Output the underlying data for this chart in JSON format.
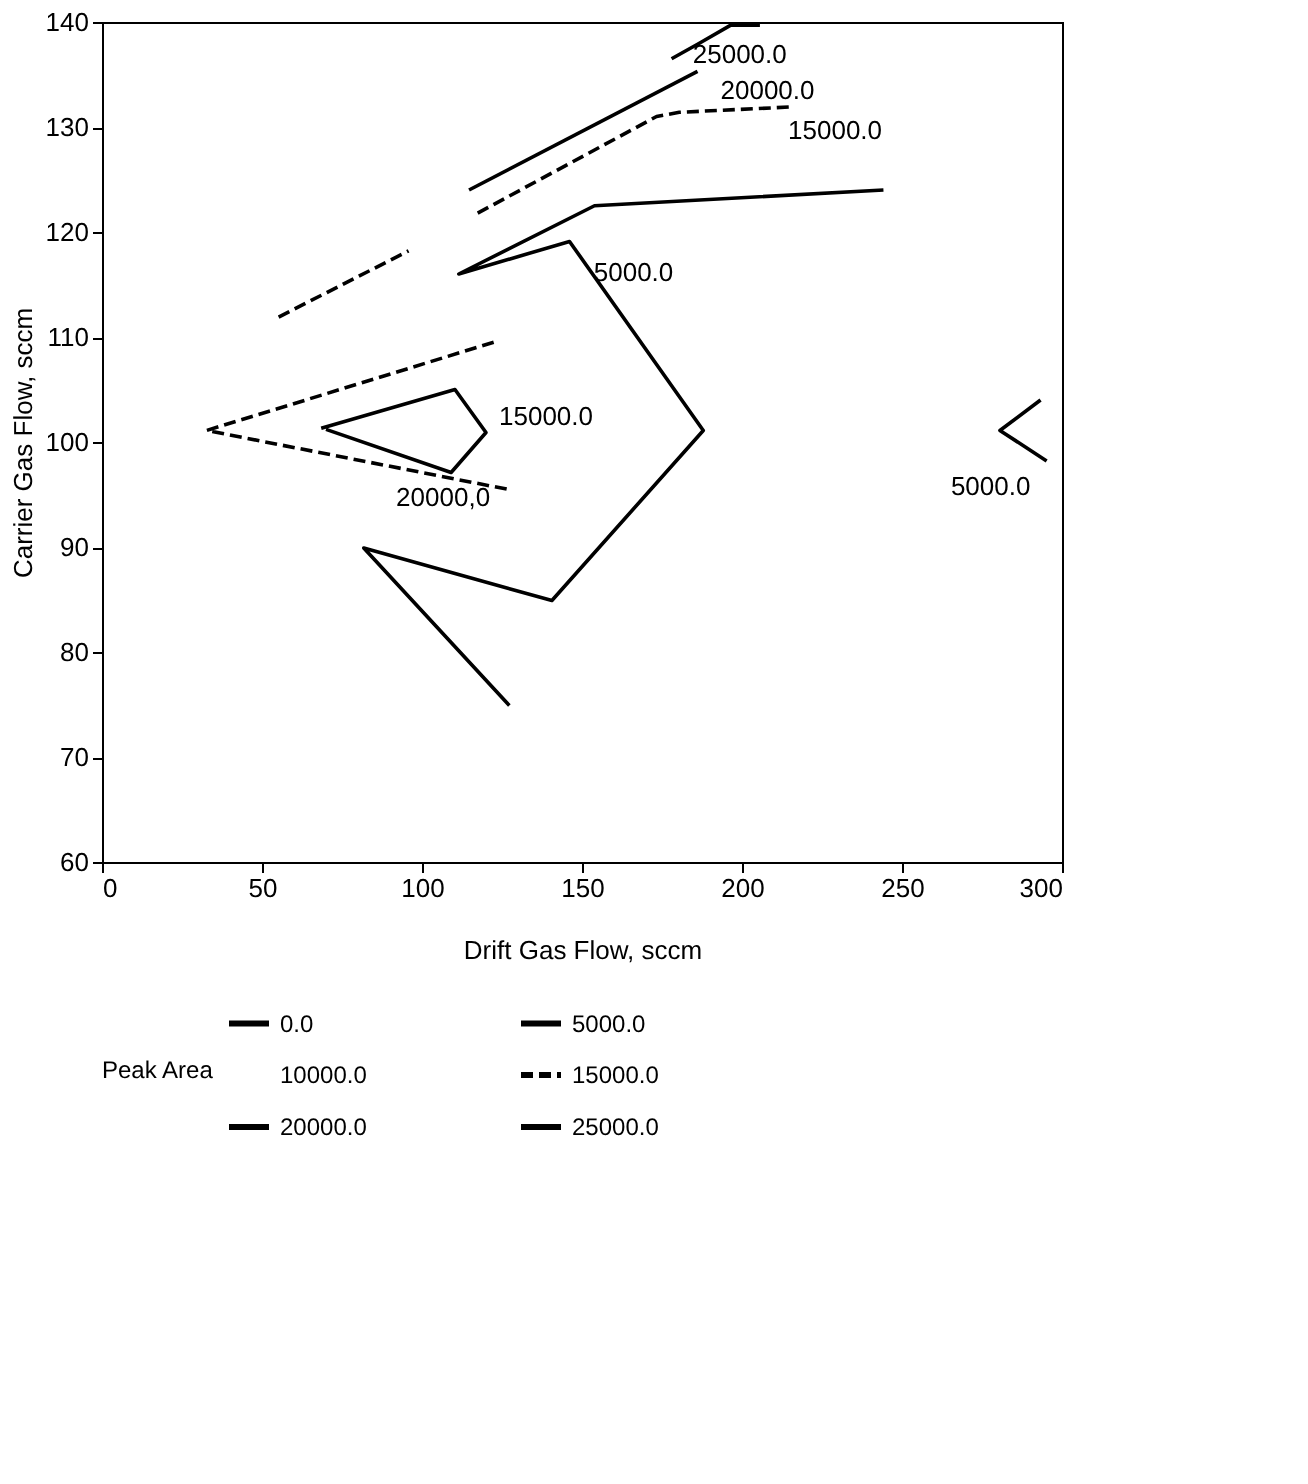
{
  "chart_data": {
    "type": "line",
    "xlabel": "Drift Gas Flow, sccm",
    "ylabel": "Carrier Gas Flow, sccm",
    "legend_title": "Peak Area",
    "legend": "bottom",
    "xlim": [
      0,
      300
    ],
    "xticks": [
      0,
      50,
      100,
      150,
      200,
      250,
      300
    ],
    "ylim": [
      60,
      140
    ],
    "yticks": [
      60,
      70,
      80,
      90,
      100,
      110,
      120,
      130,
      140
    ],
    "grid": false,
    "marker": "none",
    "series": [
      {
        "name": "0.0",
        "color": "#000000",
        "line_style": "solid"
      },
      {
        "name": "5000.0",
        "color": "#000000",
        "line_style": "solid",
        "x": [
          244.2,
          153.9,
          111.5,
          146.1,
          187.9,
          140.6,
          81.8,
          127.3,
          null,
          293.3,
          280.6,
          295.2
        ],
        "values": [
          124.0,
          122.5,
          116.0,
          119.1,
          101.1,
          84.9,
          89.9,
          74.9,
          null,
          104.0,
          101.1,
          98.2
        ]
      },
      {
        "name": "10000.0"
      },
      {
        "name": "15000.0",
        "color": "#000000",
        "line_style": "dashed",
        "x": [
          122.4,
          32.7,
          126.7,
          null,
          55.2,
          95.8,
          null,
          117.4,
          173.3,
          180.4,
          214.7
        ],
        "values": [
          109.5,
          101.1,
          95.5,
          null,
          111.9,
          118.2,
          null,
          121.8,
          131.0,
          131.4,
          131.9
        ]
      },
      {
        "name": "20000.0",
        "color": "#000000",
        "line_style": "solid",
        "x": [
          68.5,
          110.3,
          120.0,
          109.1,
          70.0,
          null,
          114.7,
          186.1
        ],
        "values": [
          101.3,
          105.0,
          100.9,
          97.1,
          101.2,
          null,
          124.0,
          135.3
        ]
      },
      {
        "name": "25000.0",
        "color": "#000000",
        "line_style": "solid",
        "x": [
          178.0,
          186.8,
          196.5,
          205.6
        ],
        "values": [
          136.5,
          138.0,
          139.7,
          139.7
        ]
      }
    ],
    "annotations": [
      {
        "text": "25000.0",
        "x": 186.8,
        "y": 138.0
      },
      {
        "text": "20000.0",
        "x": 186.1,
        "y": 135.3
      },
      {
        "text": "15000.0",
        "x": 214.7,
        "y": 131.9
      },
      {
        "text": "5000.0",
        "x": 146.1,
        "y": 119.1
      },
      {
        "text": "15000.0",
        "x": 120.0,
        "y": 100.9
      },
      {
        "text": "20000,0",
        "x": 109.1,
        "y": 97.1
      },
      {
        "text": "5000.0",
        "x": 295.2,
        "y": 98.2
      }
    ]
  }
}
